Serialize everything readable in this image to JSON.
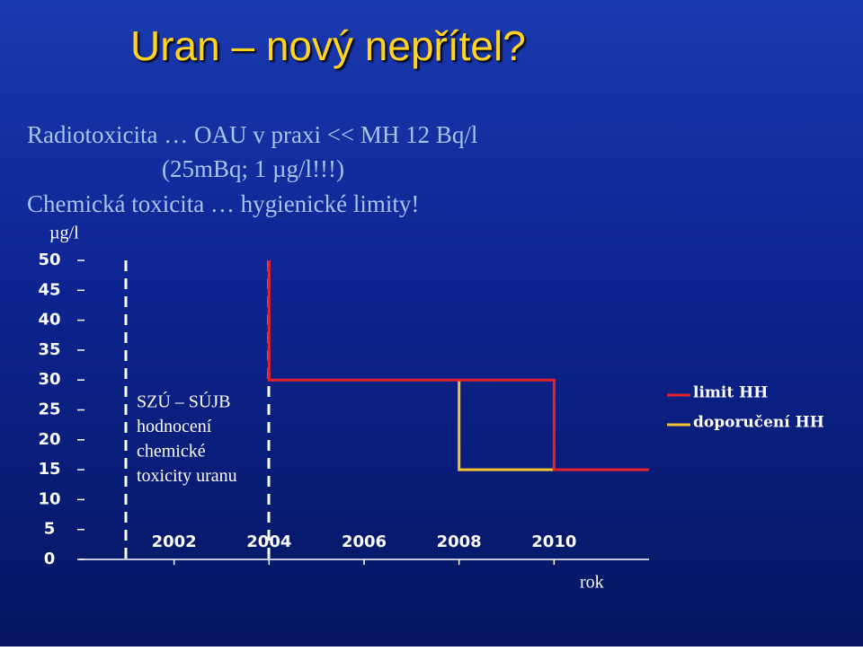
{
  "slide": {
    "title": "Uran – nový nepřítel?",
    "lines": [
      "Radiotoxicita … OAU v praxi << MH 12 Bq/l",
      "(25mBq; 1 µg/l!!!)",
      "Chemická toxicita … hygienické limity!"
    ]
  },
  "chart_data": {
    "type": "line",
    "y_label": "µg/l",
    "x_label": "rok",
    "annotation": [
      "SZÚ – SÚJB",
      "hodnocení",
      "chemické",
      "toxicity uranu"
    ],
    "xlim": [
      2000,
      2012
    ],
    "xticks": [
      2002,
      2004,
      2006,
      2008,
      2010
    ],
    "ylim": [
      0,
      50
    ],
    "yticks": [
      0,
      5,
      10,
      15,
      20,
      25,
      30,
      35,
      40,
      45,
      50
    ],
    "legend": "right",
    "series": [
      {
        "name": "limit HH",
        "color": "#e8202a",
        "x": [
          2004,
          2004,
          2010,
          2010,
          2012
        ],
        "values": [
          50,
          30,
          30,
          15,
          15
        ]
      },
      {
        "name": "doporučení HH",
        "color": "#f5c230",
        "x": [
          2008,
          2008,
          2010
        ],
        "values": [
          30,
          15,
          15
        ]
      }
    ]
  }
}
